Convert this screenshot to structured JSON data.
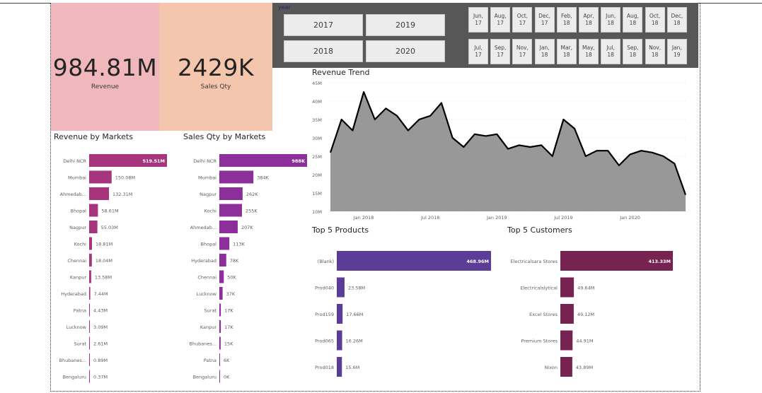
{
  "cards": [
    {
      "value": "984.81M",
      "label": "Revenue",
      "bg": "#f0b8bd"
    },
    {
      "value": "2429K",
      "label": "Sales Qty",
      "bg": "#f5c6ae"
    }
  ],
  "slicer": {
    "title": "year",
    "years": [
      "2017",
      "2019",
      "2018",
      "2020"
    ],
    "months_row1": [
      [
        "Jun,",
        "17"
      ],
      [
        "Aug,",
        "17"
      ],
      [
        "Oct,",
        "17"
      ],
      [
        "Dec,",
        "17"
      ],
      [
        "Feb,",
        "18"
      ],
      [
        "Apr,",
        "18"
      ],
      [
        "Jun,",
        "18"
      ],
      [
        "Aug,",
        "18"
      ],
      [
        "Oct,",
        "18"
      ],
      [
        "Dec,",
        "18"
      ]
    ],
    "months_row2": [
      [
        "Jul,",
        "17"
      ],
      [
        "Sep,",
        "17"
      ],
      [
        "Nov,",
        "17"
      ],
      [
        "Jan,",
        "18"
      ],
      [
        "Mar,",
        "18"
      ],
      [
        "May,",
        "18"
      ],
      [
        "Jul,",
        "18"
      ],
      [
        "Sep,",
        "18"
      ],
      [
        "Nov,",
        "18"
      ],
      [
        "Jan,",
        "19"
      ]
    ]
  },
  "titles": {
    "revenue_by_markets": "Revenue by Markets",
    "qty_by_markets": "Sales Qty by Markets",
    "revenue_trend": "Revenue Trend",
    "top_products": "Top 5 Products",
    "top_customers": "Top 5 Customers"
  },
  "colors": {
    "revenue_markets": "#a6357e",
    "qty_markets": "#8c2f9a",
    "products": "#5b3c96",
    "customers": "#762352",
    "trend_fill": "#989898",
    "trend_line": "#000000"
  },
  "chart_data": [
    {
      "id": "revenue_by_markets",
      "type": "bar",
      "orientation": "horizontal",
      "categories": [
        "Delhi NCR",
        "Mumbai",
        "Ahmedab...",
        "Bhopal",
        "Nagpur",
        "Kochi",
        "Chennai",
        "Kanpur",
        "Hyderabad",
        "Patna",
        "Lucknow",
        "Surat",
        "Bhubanes...",
        "Bengaluru"
      ],
      "values": [
        519.51,
        150.08,
        132.31,
        58.61,
        55.03,
        18.81,
        18.04,
        13.58,
        7.44,
        4.43,
        3.09,
        2.61,
        0.89,
        0.37
      ],
      "labels": [
        "519.51M",
        "150.08M",
        "132.31M",
        "58.61M",
        "55.03M",
        "18.81M",
        "18.04M",
        "13.58M",
        "7.44M",
        "4.43M",
        "3.09M",
        "2.61M",
        "0.89M",
        "0.37M"
      ],
      "title": "Revenue by Markets"
    },
    {
      "id": "qty_by_markets",
      "type": "bar",
      "orientation": "horizontal",
      "categories": [
        "Delhi NCR",
        "Mumbai",
        "Nagpur",
        "Kochi",
        "Ahmedab...",
        "Bhopal",
        "Hyderabad",
        "Chennai",
        "Lucknow",
        "Surat",
        "Kanpur",
        "Bhubanes...",
        "Patna",
        "Bengaluru"
      ],
      "values": [
        988,
        384,
        262,
        255,
        207,
        113,
        78,
        50,
        37,
        17,
        17,
        15,
        6,
        0
      ],
      "labels": [
        "988K",
        "384K",
        "262K",
        "255K",
        "207K",
        "113K",
        "78K",
        "50K",
        "37K",
        "17K",
        "17K",
        "15K",
        "6K",
        "0K"
      ],
      "title": "Sales Qty by Markets"
    },
    {
      "id": "revenue_trend",
      "type": "area",
      "title": "Revenue Trend",
      "x": [
        "2017-10",
        "2017-11",
        "2017-12",
        "2018-01",
        "2018-02",
        "2018-03",
        "2018-04",
        "2018-05",
        "2018-06",
        "2018-07",
        "2018-08",
        "2018-09",
        "2018-10",
        "2018-11",
        "2018-12",
        "2019-01",
        "2019-02",
        "2019-03",
        "2019-04",
        "2019-05",
        "2019-06",
        "2019-07",
        "2019-08",
        "2019-09",
        "2019-10",
        "2019-11",
        "2019-12",
        "2020-01",
        "2020-02",
        "2020-03",
        "2020-04",
        "2020-05",
        "2020-06"
      ],
      "y": [
        26,
        35,
        32,
        42.5,
        35,
        38,
        36,
        32,
        35,
        36,
        39.5,
        30,
        27.5,
        31,
        30.5,
        31,
        27,
        28,
        27.5,
        28,
        25,
        35,
        32.5,
        25,
        26.5,
        26.5,
        22.5,
        25.5,
        26.5,
        26,
        25,
        23,
        14.5
      ],
      "yticks": [
        "10M",
        "15M",
        "20M",
        "25M",
        "30M",
        "35M",
        "40M",
        "45M"
      ],
      "ylim": [
        10,
        45
      ],
      "xticks": [
        "Jan 2018",
        "Jul 2018",
        "Jan 2019",
        "Jul 2019",
        "Jan 2020"
      ]
    },
    {
      "id": "top_products",
      "type": "bar",
      "orientation": "horizontal",
      "categories": [
        "(Blank)",
        "Prod040",
        "Prod159",
        "Prod065",
        "Prod018"
      ],
      "values": [
        468.96,
        23.58,
        17.66,
        16.26,
        15.6
      ],
      "labels": [
        "468.96M",
        "23.58M",
        "17.66M",
        "16.26M",
        "15.6M"
      ],
      "title": "Top 5 Products"
    },
    {
      "id": "top_customers",
      "type": "bar",
      "orientation": "horizontal",
      "categories": [
        "Electricalsara Stores",
        "Electricalslytical",
        "Excel Stores",
        "Premium Stores",
        "Nixon"
      ],
      "values": [
        413.33,
        49.64,
        49.12,
        44.91,
        43.89
      ],
      "labels": [
        "413.33M",
        "49.64M",
        "49.12M",
        "44.91M",
        "43.89M"
      ],
      "title": "Top 5 Customers"
    }
  ]
}
